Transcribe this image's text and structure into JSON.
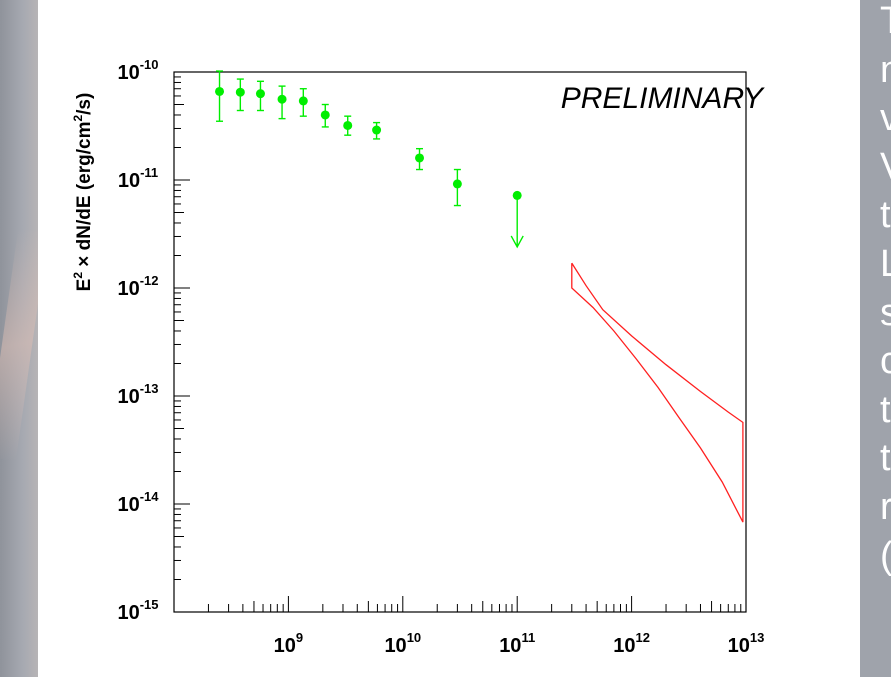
{
  "chart_data": {
    "type": "scatter",
    "title": "",
    "annotation": "PRELIMINARY",
    "xlabel": "",
    "ylabel_parts": {
      "base": "E",
      "base_sup": "2",
      "rest": " × dN/dE (erg/cm",
      "rest_sup": "2",
      "tail": "/s)"
    },
    "xscale": "log",
    "yscale": "log",
    "xlim": [
      100000000,
      10000000000000
    ],
    "ylim": [
      1e-15,
      1e-10
    ],
    "x_ticks": [
      {
        "value": 1000000000,
        "base": "10",
        "exp": "9"
      },
      {
        "value": 10000000000,
        "base": "10",
        "exp": "10"
      },
      {
        "value": 100000000000,
        "base": "10",
        "exp": "11"
      },
      {
        "value": 1000000000000,
        "base": "10",
        "exp": "12"
      },
      {
        "value": 10000000000000,
        "base": "10",
        "exp": "13"
      }
    ],
    "y_ticks": [
      {
        "value": 1e-10,
        "base": "10",
        "exp": "-10"
      },
      {
        "value": 1e-11,
        "base": "10",
        "exp": "-11"
      },
      {
        "value": 1e-12,
        "base": "10",
        "exp": "-12"
      },
      {
        "value": 1e-13,
        "base": "10",
        "exp": "-13"
      },
      {
        "value": 1e-14,
        "base": "10",
        "exp": "-14"
      },
      {
        "value": 1e-15,
        "base": "10",
        "exp": "-15"
      }
    ],
    "grid": false,
    "series": [
      {
        "color": "#00ee00",
        "points": [
          {
            "x": 250000000,
            "y": 6.6e-11,
            "ylo": 3.5e-11,
            "yhi": 1.02e-10
          },
          {
            "x": 380000000,
            "y": 6.5e-11,
            "ylo": 4.4e-11,
            "yhi": 8.6e-11
          },
          {
            "x": 570000000,
            "y": 6.3e-11,
            "ylo": 4.4e-11,
            "yhi": 8.2e-11
          },
          {
            "x": 880000000,
            "y": 5.6e-11,
            "ylo": 3.7e-11,
            "yhi": 7.4e-11
          },
          {
            "x": 1350000000,
            "y": 5.4e-11,
            "ylo": 3.9e-11,
            "yhi": 7e-11
          },
          {
            "x": 2100000000,
            "y": 4e-11,
            "ylo": 3.1e-11,
            "yhi": 5e-11
          },
          {
            "x": 3300000000,
            "y": 3.2e-11,
            "ylo": 2.6e-11,
            "yhi": 3.9e-11
          },
          {
            "x": 5900000000,
            "y": 2.9e-11,
            "ylo": 2.4e-11,
            "yhi": 3.4e-11
          },
          {
            "x": 14000000000,
            "y": 1.6e-11,
            "ylo": 1.25e-11,
            "yhi": 1.95e-11
          },
          {
            "x": 30000000000,
            "y": 9.2e-12,
            "ylo": 5.8e-12,
            "yhi": 1.25e-11
          }
        ],
        "upper_limits": [
          {
            "x": 100000000000,
            "y": 7.2e-12,
            "arrow_to": 2.4e-12
          }
        ]
      }
    ],
    "butterfly": {
      "color": "#ff2020",
      "outline": [
        {
          "x": 300000000000,
          "y": 1.7e-12
        },
        {
          "x": 300000000000,
          "y": 1e-12
        },
        {
          "x": 460000000000,
          "y": 6.6e-13
        },
        {
          "x": 700000000000,
          "y": 4e-13
        },
        {
          "x": 1100000000000,
          "y": 2.2e-13
        },
        {
          "x": 1700000000000,
          "y": 1.2e-13
        },
        {
          "x": 2600000000000,
          "y": 6.3e-14
        },
        {
          "x": 4000000000000,
          "y": 3.3e-14
        },
        {
          "x": 6200000000000,
          "y": 1.6e-14
        },
        {
          "x": 9400000000000,
          "y": 6.8e-15
        },
        {
          "x": 9400000000000,
          "y": 5.7e-14
        },
        {
          "x": 7000000000000,
          "y": 7.1e-14
        },
        {
          "x": 4000000000000,
          "y": 1.1e-13
        },
        {
          "x": 2000000000000,
          "y": 1.95e-13
        },
        {
          "x": 1000000000000,
          "y": 3.6e-13
        },
        {
          "x": 560000000000,
          "y": 6.3e-13
        },
        {
          "x": 400000000000,
          "y": 1.05e-12
        },
        {
          "x": 300000000000,
          "y": 1.7e-12
        }
      ]
    }
  },
  "side_text": {
    "glyphs": [
      "T",
      "n",
      "v",
      "V",
      "t",
      "L",
      "s",
      "c",
      "t",
      "t",
      "r",
      "("
    ]
  }
}
